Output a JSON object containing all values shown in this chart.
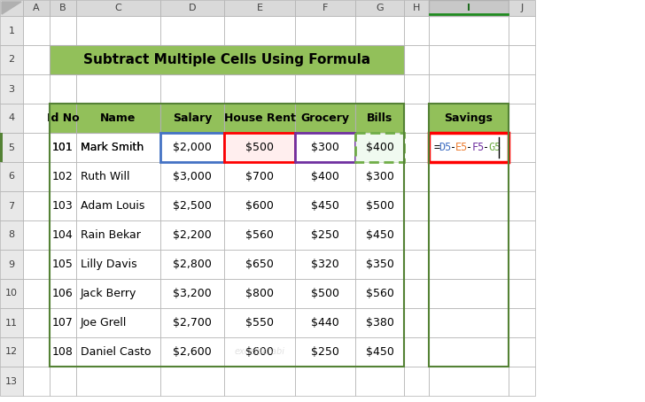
{
  "title": "Subtract Multiple Cells Using Formula",
  "title_bg": "#92C05A",
  "header_bg": "#92C05A",
  "col_headers": [
    "Id No",
    "Name",
    "Salary",
    "House Rent",
    "Grocery",
    "Bills"
  ],
  "savings_header": "Savings",
  "formula_text": "=D5-E5-F5-G5",
  "rows": [
    [
      "101",
      "Mark Smith",
      "$2,000",
      "$500",
      "$300",
      "$400"
    ],
    [
      "102",
      "Ruth Will",
      "$3,000",
      "$700",
      "$400",
      "$300"
    ],
    [
      "103",
      "Adam Louis",
      "$2,500",
      "$600",
      "$450",
      "$500"
    ],
    [
      "104",
      "Rain Bekar",
      "$2,200",
      "$560",
      "$250",
      "$450"
    ],
    [
      "105",
      "Lilly Davis",
      "$2,800",
      "$650",
      "$320",
      "$350"
    ],
    [
      "106",
      "Jack Berry",
      "$3,200",
      "$800",
      "$500",
      "$560"
    ],
    [
      "107",
      "Joe Grell",
      "$2,700",
      "$550",
      "$440",
      "$380"
    ],
    [
      "108",
      "Daniel Casto",
      "$2,600",
      "$600",
      "$250",
      "$450"
    ]
  ],
  "col_letters": [
    "A",
    "B",
    "C",
    "D",
    "E",
    "F",
    "G",
    "H",
    "I",
    "J"
  ],
  "grid_color": "#B0B0B0",
  "cell_bg": "#FFFFFF",
  "formula_color_D": "#4472C4",
  "formula_color_E": "#ED7D31",
  "formula_color_F": "#7030A0",
  "formula_color_G": "#70AD47",
  "border_color_D": "#4472C4",
  "border_color_E": "#FF0000",
  "border_color_F": "#7030A0",
  "border_color_G": "#70AD47",
  "savings_col_border": "#FF0000",
  "sheet_bg": "#F2F2F2",
  "col_header_bg": "#D9D9D9",
  "row_num_bg": "#E8E8E8",
  "selected_col_bg": "#C0D890",
  "outer_table_border": "#548235",
  "cursor_line_color": "#000000"
}
